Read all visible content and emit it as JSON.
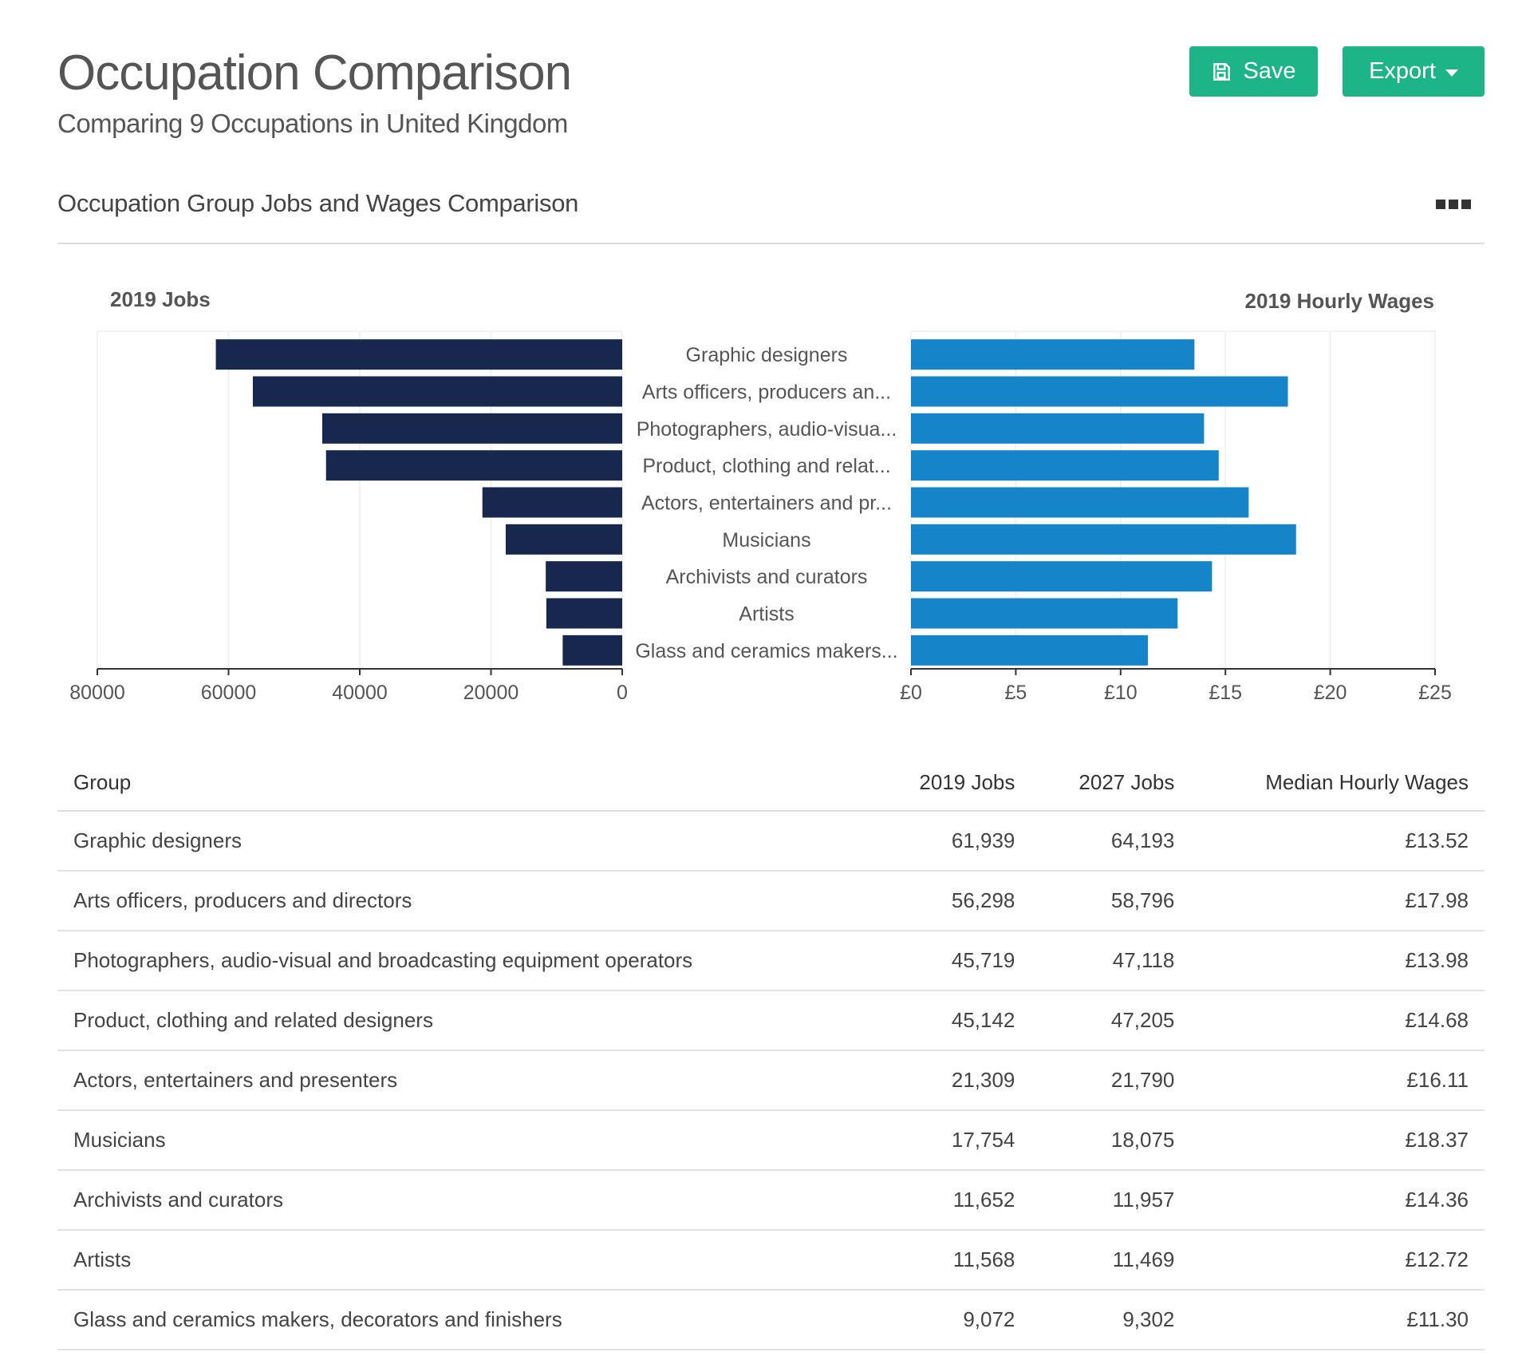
{
  "header": {
    "title": "Occupation Comparison",
    "subtitle": "Comparing 9 Occupations in United Kingdom"
  },
  "toolbar": {
    "save_label": "Save",
    "export_label": "Export"
  },
  "section": {
    "title": "Occupation Group Jobs and Wages Comparison"
  },
  "colors": {
    "accent": "#1db587",
    "jobs_bar": "#17274e",
    "wages_bar": "#1584c8"
  },
  "chart_data": {
    "type": "bar",
    "layout": "butterfly",
    "categories": [
      "Graphic designers",
      "Arts officers, producers an...",
      "Photographers, audio-visua...",
      "Product, clothing and relat...",
      "Actors, entertainers and pr...",
      "Musicians",
      "Archivists and curators",
      "Artists",
      "Glass and ceramics makers..."
    ],
    "series": [
      {
        "name": "2019 Jobs",
        "values": [
          61939,
          56298,
          45719,
          45142,
          21309,
          17754,
          11652,
          11568,
          9072
        ],
        "xlim": [
          80000,
          0
        ],
        "ticks": [
          "80000",
          "60000",
          "40000",
          "20000",
          "0"
        ]
      },
      {
        "name": "2019 Hourly Wages",
        "values": [
          13.52,
          17.98,
          13.98,
          14.68,
          16.11,
          18.37,
          14.36,
          12.72,
          11.3
        ],
        "xlim": [
          0,
          25
        ],
        "ticks": [
          "£0",
          "£5",
          "£10",
          "£15",
          "£20",
          "£25"
        ]
      }
    ]
  },
  "table": {
    "headers": [
      "Group",
      "2019 Jobs",
      "2027 Jobs",
      "Median Hourly Wages"
    ],
    "rows": [
      [
        "Graphic designers",
        "61,939",
        "64,193",
        "£13.52"
      ],
      [
        "Arts officers, producers and directors",
        "56,298",
        "58,796",
        "£17.98"
      ],
      [
        "Photographers, audio-visual and broadcasting equipment operators",
        "45,719",
        "47,118",
        "£13.98"
      ],
      [
        "Product, clothing and related designers",
        "45,142",
        "47,205",
        "£14.68"
      ],
      [
        "Actors, entertainers and presenters",
        "21,309",
        "21,790",
        "£16.11"
      ],
      [
        "Musicians",
        "17,754",
        "18,075",
        "£18.37"
      ],
      [
        "Archivists and curators",
        "11,652",
        "11,957",
        "£14.36"
      ],
      [
        "Artists",
        "11,568",
        "11,469",
        "£12.72"
      ],
      [
        "Glass and ceramics makers, decorators and finishers",
        "9,072",
        "9,302",
        "£11.30"
      ]
    ]
  }
}
